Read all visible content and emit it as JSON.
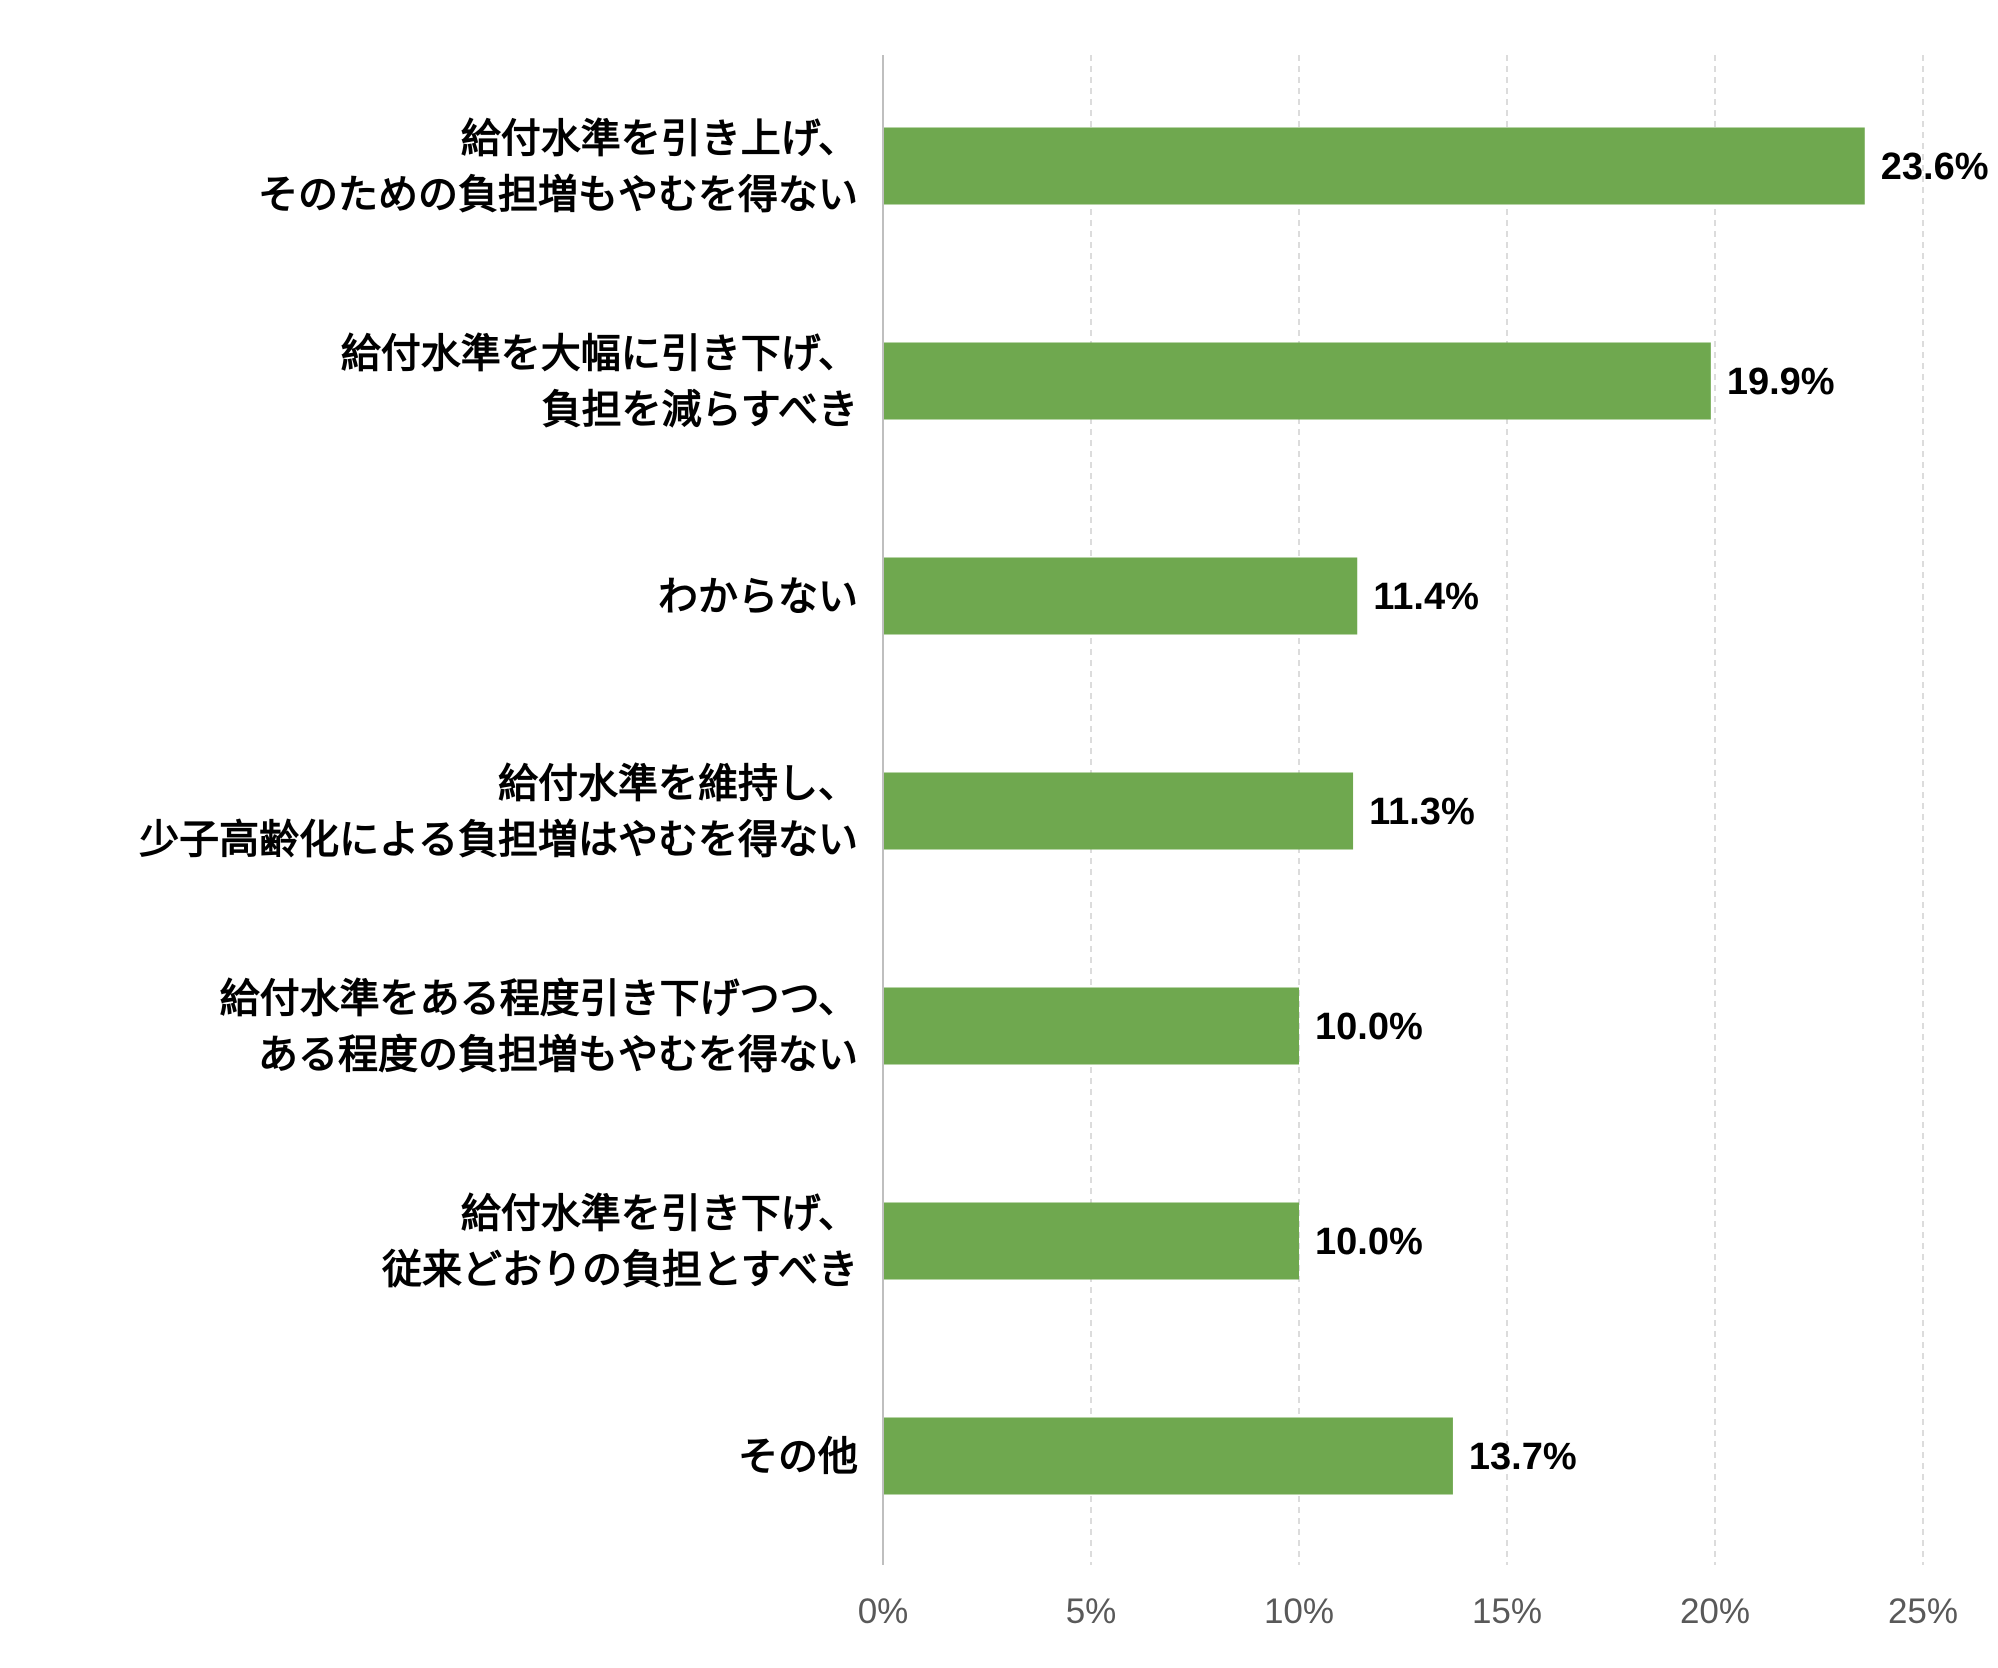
{
  "chart_data": {
    "type": "bar",
    "orientation": "horizontal",
    "categories": [
      [
        "給付水準を引き上げ、",
        "そのための負担増もやむを得ない"
      ],
      [
        "給付水準を大幅に引き下げ、",
        "負担を減らすべき"
      ],
      [
        "わからない"
      ],
      [
        "給付水準を維持し、",
        "少子高齢化による負担増はやむを得ない"
      ],
      [
        "給付水準をある程度引き下げつつ、",
        "ある程度の負担増もやむを得ない"
      ],
      [
        "給付水準を引き下げ、",
        "従来どおりの負担とすべき"
      ],
      [
        "その他"
      ]
    ],
    "values": [
      23.6,
      19.9,
      11.4,
      11.3,
      10.0,
      10.0,
      13.7
    ],
    "value_labels": [
      "23.6%",
      "19.9%",
      "11.4%",
      "11.3%",
      "10.0%",
      "10.0%",
      "13.7%"
    ],
    "x_ticks": [
      0,
      5,
      10,
      15,
      20,
      25
    ],
    "x_tick_labels": [
      "0%",
      "5%",
      "10%",
      "15%",
      "20%",
      "25%"
    ],
    "xlim": [
      0,
      25
    ],
    "grid": true,
    "title": "",
    "xlabel": "",
    "ylabel": ""
  },
  "colors": {
    "bar": "#6fa84f",
    "grid": "#d0d0d0",
    "axis": "#bfbfbf"
  }
}
